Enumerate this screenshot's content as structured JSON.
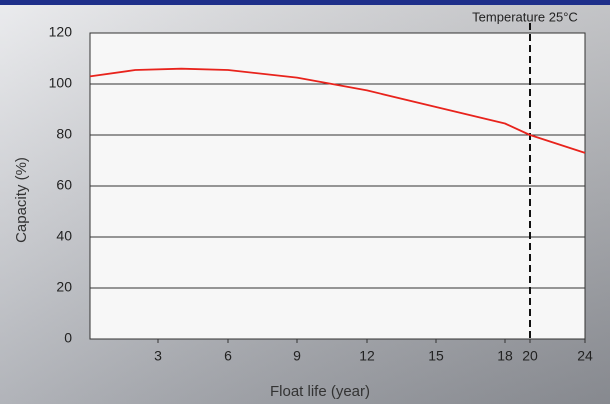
{
  "chart_data": {
    "type": "line",
    "annotation": "Temperature 25°C",
    "x_label": "Float life (year)",
    "y_label": "Capacity (%)",
    "x": [
      0,
      2,
      4,
      6,
      9,
      12,
      15,
      18,
      20,
      24
    ],
    "series": [
      {
        "color": "#e8231c",
        "values": [
          103,
          105.5,
          106,
          105.5,
          102.5,
          97.5,
          91,
          84.5,
          80,
          73
        ]
      }
    ],
    "xlim": [
      0,
      24
    ],
    "xticks": [
      3,
      6,
      9,
      12,
      15,
      18,
      20,
      24
    ],
    "ylim": [
      0,
      120
    ],
    "yticks": [
      0,
      20,
      40,
      60,
      80,
      100,
      120
    ],
    "vline": 20,
    "grid": true
  }
}
